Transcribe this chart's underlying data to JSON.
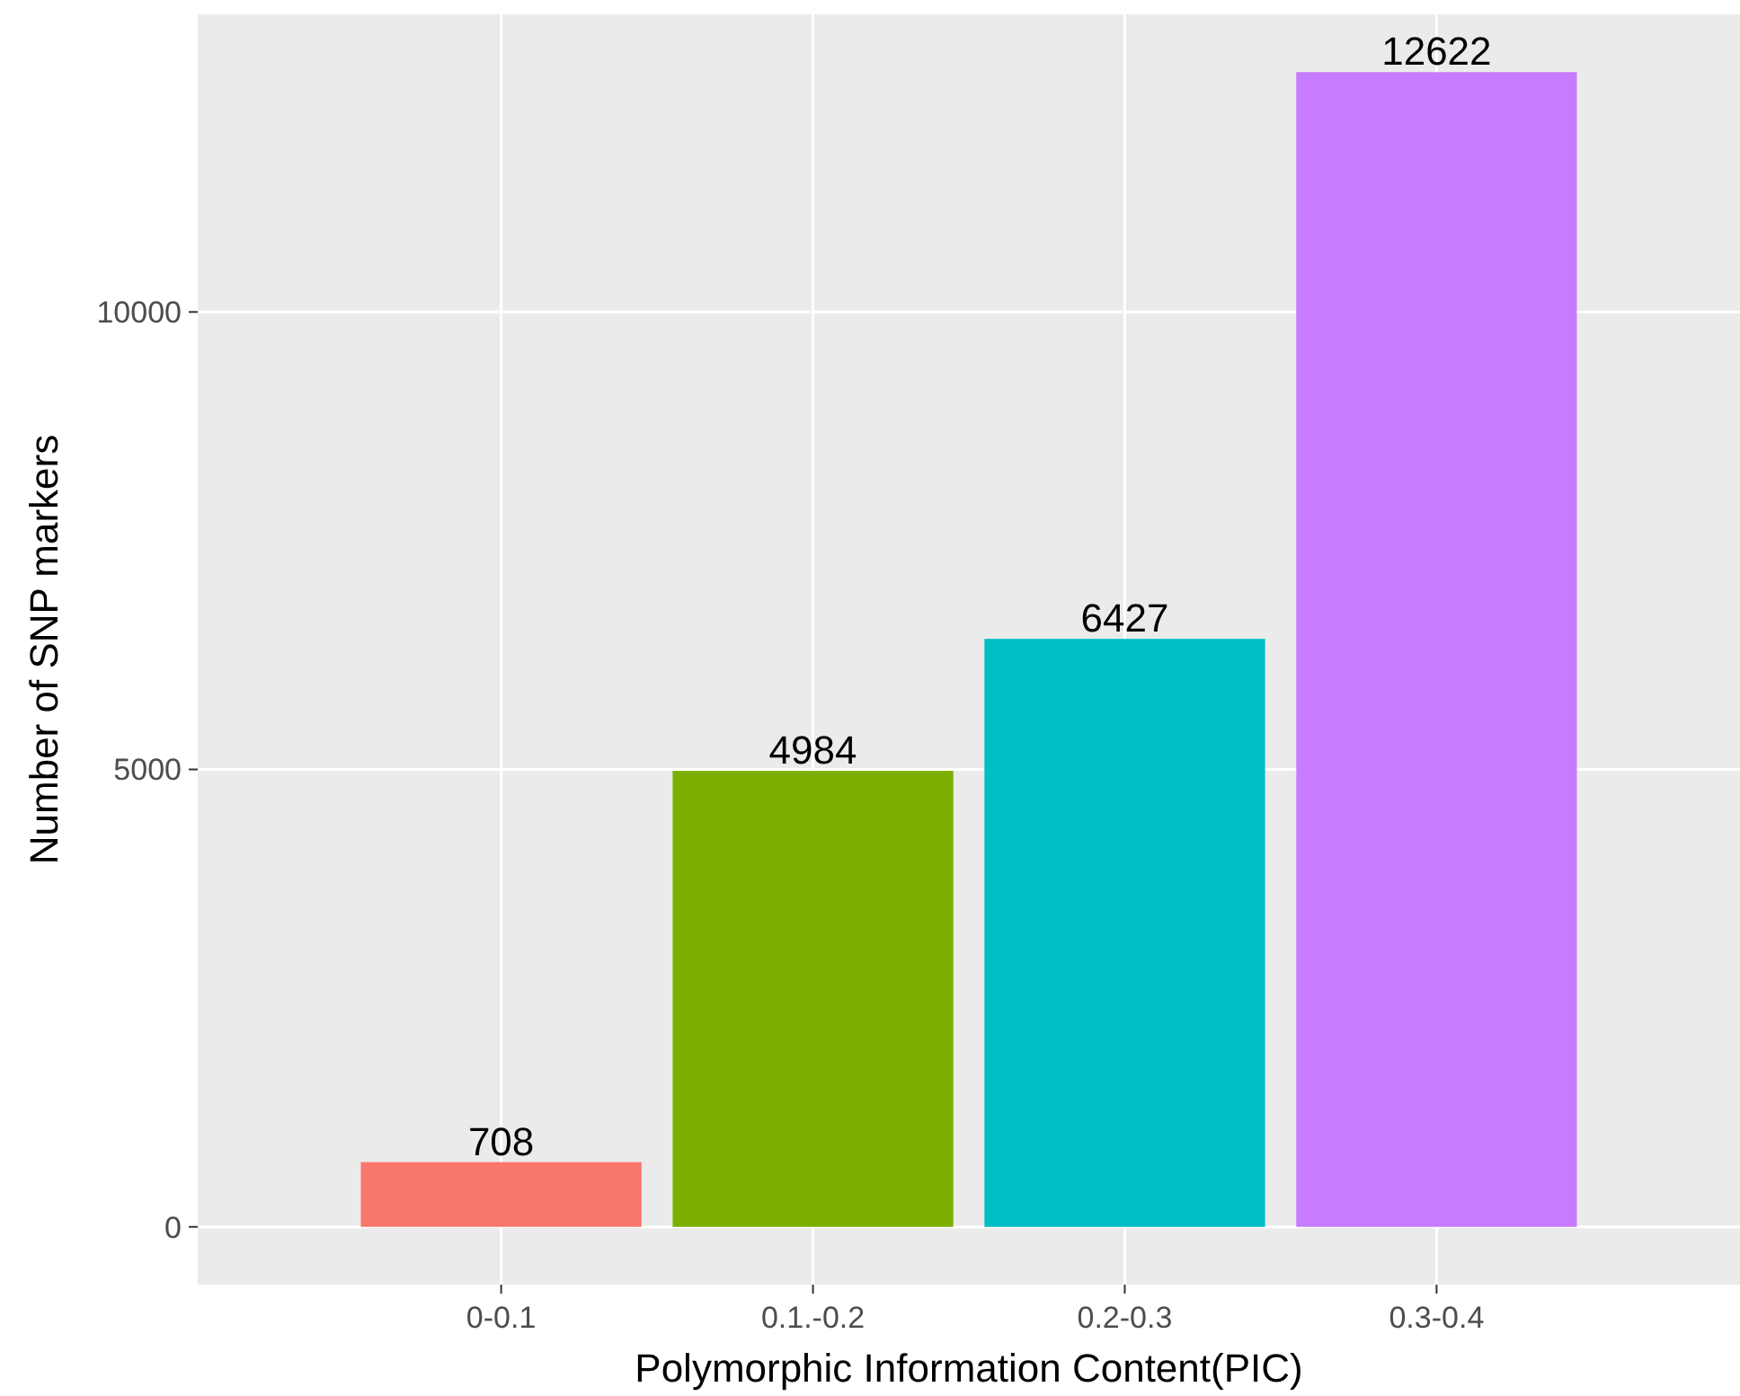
{
  "chart_data": {
    "type": "bar",
    "xlabel": "Polymorphic Information Content(PIC)",
    "ylabel": "Number of SNP markers",
    "categories": [
      "0-0.1",
      "0.1.-0.2",
      "0.2-0.3",
      "0.3-0.4"
    ],
    "values": [
      708,
      4984,
      6427,
      12622
    ],
    "colors": [
      "#f8766d",
      "#7cae00",
      "#00bfc4",
      "#c77cff"
    ],
    "ylim": [
      -631,
      13253
    ],
    "yticks": [
      0,
      5000,
      10000
    ],
    "grid": true,
    "data_labels": true
  }
}
